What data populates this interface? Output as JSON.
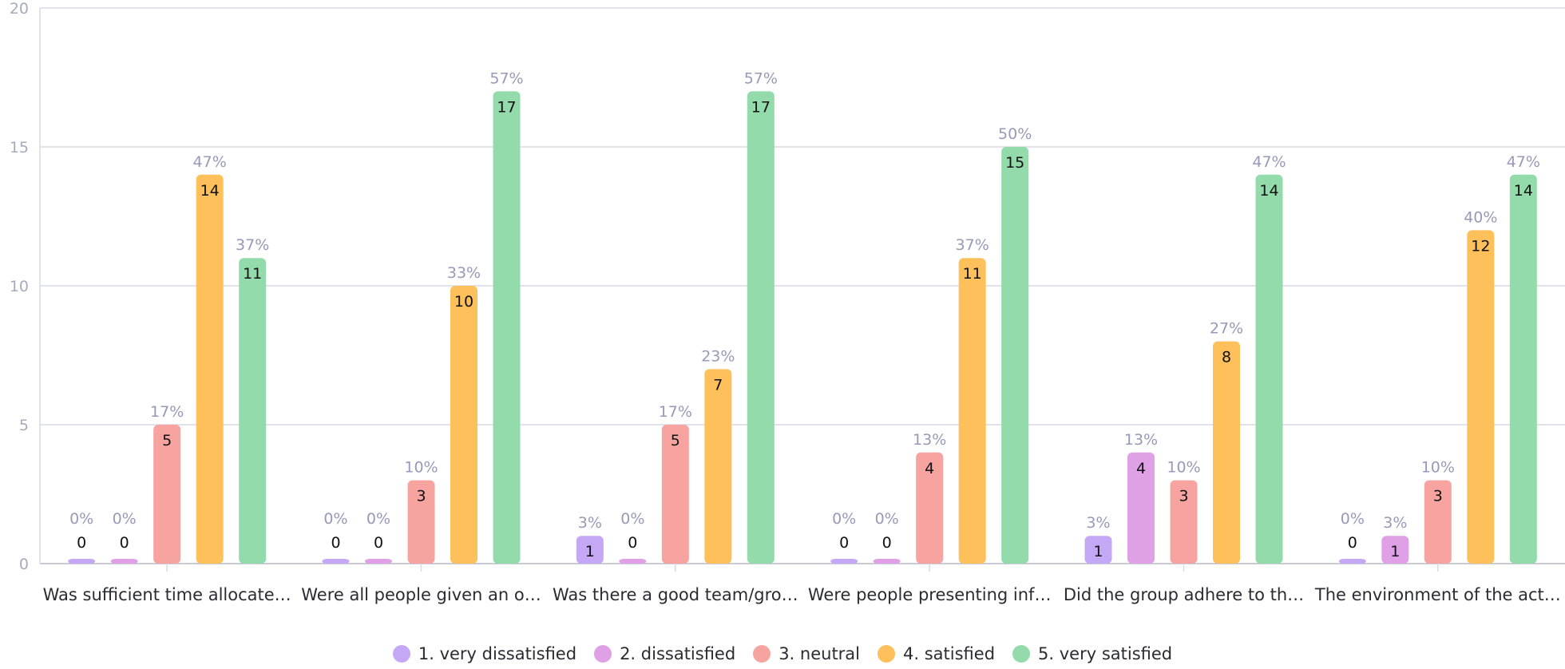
{
  "chart_data": {
    "type": "bar",
    "title": "",
    "xlabel": "",
    "ylabel": "",
    "ylim": [
      0,
      20
    ],
    "yticks": [
      0,
      5,
      10,
      15,
      20
    ],
    "grid": true,
    "legend_position": "bottom",
    "categories": [
      "Was sufficient time allocate…",
      "Were all people given an o…",
      "Was there a good team/gro…",
      "Were people presenting inf…",
      "Did the group adhere to th…",
      "The environment of the act…"
    ],
    "series": [
      {
        "name": "1. very dissatisfied",
        "color": "#c5a8f5",
        "values": [
          0,
          0,
          1,
          0,
          1,
          0
        ],
        "percent_labels": [
          "0%",
          "0%",
          "3%",
          "0%",
          "3%",
          "0%"
        ]
      },
      {
        "name": "2. dissatisfied",
        "color": "#dfa0e6",
        "values": [
          0,
          0,
          0,
          0,
          4,
          1
        ],
        "percent_labels": [
          "0%",
          "0%",
          "0%",
          "0%",
          "13%",
          "3%"
        ]
      },
      {
        "name": "3. neutral",
        "color": "#f7a4a1",
        "values": [
          5,
          3,
          5,
          4,
          3,
          3
        ],
        "percent_labels": [
          "17%",
          "10%",
          "17%",
          "13%",
          "10%",
          "10%"
        ]
      },
      {
        "name": "4. satisfied",
        "color": "#fdc05a",
        "values": [
          14,
          10,
          7,
          11,
          8,
          12
        ],
        "percent_labels": [
          "47%",
          "33%",
          "23%",
          "37%",
          "27%",
          "40%"
        ]
      },
      {
        "name": "5. very satisfied",
        "color": "#93dbab",
        "values": [
          11,
          17,
          17,
          15,
          14,
          14
        ],
        "percent_labels": [
          "37%",
          "57%",
          "57%",
          "50%",
          "47%",
          "47%"
        ]
      }
    ]
  }
}
